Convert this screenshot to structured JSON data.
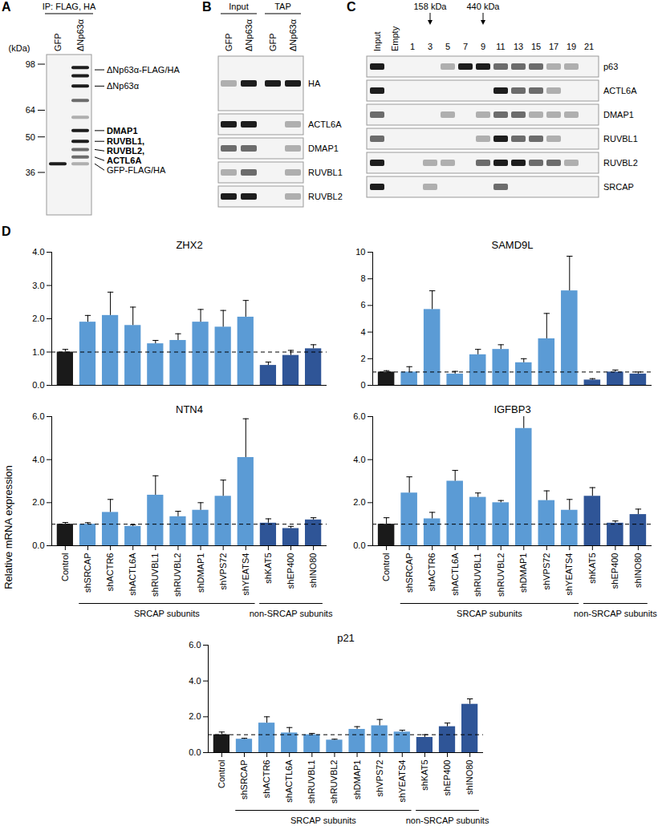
{
  "panels": {
    "A": {
      "label": "A",
      "header": "IP: FLAG, HA",
      "lanes": [
        "GFP",
        "ΔNp63α"
      ],
      "marker_title": "(kDa)",
      "markers": [
        98,
        64,
        50,
        36
      ],
      "bands": [
        {
          "kda": 95,
          "signal": [
            0,
            3
          ]
        },
        {
          "kda": 88,
          "signal": [
            0,
            3
          ]
        },
        {
          "kda": 80,
          "signal": [
            0,
            3
          ]
        },
        {
          "kda": 70,
          "signal": [
            0,
            2
          ]
        },
        {
          "kda": 60,
          "signal": [
            0,
            1
          ]
        },
        {
          "kda": 53,
          "signal": [
            0,
            3
          ]
        },
        {
          "kda": 48,
          "signal": [
            0,
            3
          ]
        },
        {
          "kda": 44.5,
          "signal": [
            0,
            2
          ]
        },
        {
          "kda": 41.5,
          "signal": [
            0,
            2
          ]
        },
        {
          "kda": 39,
          "signal": [
            3,
            1
          ]
        }
      ],
      "labels": [
        {
          "text": "ΔNp63α-FLAG/HA",
          "kda": 93
        },
        {
          "text": "ΔNp63α",
          "kda": 80
        },
        {
          "text": "GFP-FLAG/HA",
          "kda": 39
        }
      ],
      "identified_labels": [
        {
          "text": "DMAP1",
          "kda": 53
        },
        {
          "text": "RUVBL1,",
          "kda": 48
        },
        {
          "text": "RUVBL2,",
          "kda": 44.5
        },
        {
          "text": "ACTL6A",
          "kda": 41.5
        }
      ]
    },
    "B": {
      "label": "B",
      "groups": [
        {
          "text": "Input",
          "lanes": [
            0,
            1
          ]
        },
        {
          "text": "TAP",
          "lanes": [
            2,
            3
          ]
        }
      ],
      "lanes": [
        "GFP",
        "ΔNp63α",
        "GFP",
        "ΔNp63α"
      ],
      "rows": [
        {
          "name": "HA",
          "signal": [
            1,
            3,
            3,
            3
          ]
        },
        {
          "name": "ACTL6A",
          "signal": [
            3,
            3,
            0,
            1
          ]
        },
        {
          "name": "DMAP1",
          "signal": [
            2,
            2,
            0,
            1
          ]
        },
        {
          "name": "RUVBL1",
          "signal": [
            1,
            2,
            0,
            1
          ]
        },
        {
          "name": "RUVBL2",
          "signal": [
            3,
            3,
            0,
            1
          ]
        }
      ]
    },
    "C": {
      "label": "C",
      "lanes": [
        "Input",
        "Empty",
        1,
        3,
        5,
        7,
        9,
        11,
        13,
        15,
        17,
        19,
        21
      ],
      "size_markers": [
        {
          "text": "158 kDa",
          "fraction": 3
        },
        {
          "text": "440 kDa",
          "fraction": 9
        }
      ],
      "rows": [
        {
          "name": "p63",
          "signal": [
            3,
            0,
            0,
            0,
            1,
            3,
            3,
            2,
            2,
            2,
            1,
            1,
            0
          ]
        },
        {
          "name": "ACTL6A",
          "signal": [
            3,
            0,
            0,
            0,
            0,
            0,
            0,
            3,
            2,
            2,
            1,
            0,
            0
          ]
        },
        {
          "name": "DMAP1",
          "signal": [
            2,
            0,
            0,
            0,
            1,
            0,
            1,
            2,
            2,
            1,
            1,
            1,
            0
          ]
        },
        {
          "name": "RUVBL1",
          "signal": [
            2,
            0,
            0,
            0,
            0,
            0,
            1,
            3,
            2,
            2,
            1,
            0,
            0
          ]
        },
        {
          "name": "RUVBL2",
          "signal": [
            3,
            0,
            0,
            1,
            1,
            0,
            2,
            3,
            3,
            2,
            2,
            1,
            0
          ]
        },
        {
          "name": "SRCAP",
          "signal": [
            3,
            0,
            0,
            1,
            0,
            0,
            0,
            2,
            0,
            0,
            0,
            0,
            0
          ]
        }
      ]
    }
  },
  "panel_d": {
    "label": "D",
    "y_label": "Relative mRNA expression",
    "groups": [
      {
        "text": "SRCAP subunits",
        "from": "shSRCAP",
        "to": "shYEATS4"
      },
      {
        "text": "non-SRCAP subunits",
        "from": "shKAT5",
        "to": "shINO80"
      }
    ]
  },
  "chart_data": [
    {
      "type": "bar",
      "title": "ZHX2",
      "categories": [
        "Control",
        "shSRCAP",
        "shACTR6",
        "shACTL6A",
        "shRUVBL1",
        "shRUVBL2",
        "shDMAP1",
        "shVPS72",
        "shYEATS4",
        "shKAT5",
        "shEP400",
        "shINO80"
      ],
      "values": [
        1.0,
        1.9,
        2.1,
        1.8,
        1.25,
        1.35,
        1.9,
        1.75,
        2.05,
        0.6,
        0.9,
        1.1
      ],
      "errors": [
        0.08,
        0.2,
        0.7,
        0.55,
        0.1,
        0.2,
        0.38,
        0.5,
        0.5,
        0.1,
        0.15,
        0.12
      ],
      "colors": [
        "#1a1a1a",
        "#5b9bd5",
        "#5b9bd5",
        "#5b9bd5",
        "#5b9bd5",
        "#5b9bd5",
        "#5b9bd5",
        "#5b9bd5",
        "#5b9bd5",
        "#2f5597",
        "#2f5597",
        "#2f5597"
      ],
      "ylim": [
        0,
        4
      ],
      "yticks": [
        0,
        1,
        2,
        3,
        4
      ],
      "baseline": 1,
      "tick_labels": "y"
    },
    {
      "type": "bar",
      "title": "SAMD9L",
      "categories": [
        "Control",
        "shSRCAP",
        "shACTR6",
        "shACTL6A",
        "shRUVBL1",
        "shRUVBL2",
        "shDMAP1",
        "shVPS72",
        "shYEATS4",
        "shKAT5",
        "shEP400",
        "shINO80"
      ],
      "values": [
        1.0,
        1.0,
        5.7,
        0.85,
        2.3,
        2.7,
        1.7,
        3.5,
        7.1,
        0.4,
        1.0,
        0.85
      ],
      "errors": [
        0.1,
        0.4,
        1.4,
        0.2,
        0.4,
        0.35,
        0.3,
        1.9,
        2.6,
        0.1,
        0.15,
        0.15
      ],
      "colors": [
        "#1a1a1a",
        "#5b9bd5",
        "#5b9bd5",
        "#5b9bd5",
        "#5b9bd5",
        "#5b9bd5",
        "#5b9bd5",
        "#5b9bd5",
        "#5b9bd5",
        "#2f5597",
        "#2f5597",
        "#2f5597"
      ],
      "ylim": [
        0,
        10
      ],
      "yticks": [
        0,
        2,
        4,
        6,
        8,
        10
      ],
      "baseline": 1,
      "tick_labels": "y"
    },
    {
      "type": "bar",
      "title": "NTN4",
      "categories": [
        "Control",
        "shSRCAP",
        "shACTR6",
        "shACTL6A",
        "shRUVBL1",
        "shRUVBL2",
        "shDMAP1",
        "shVPS72",
        "shYEATS4",
        "shKAT5",
        "shEP400",
        "shINO80"
      ],
      "values": [
        1.0,
        1.0,
        1.55,
        0.9,
        2.35,
        1.35,
        1.65,
        2.3,
        4.1,
        1.05,
        0.8,
        1.2
      ],
      "errors": [
        0.08,
        0.07,
        0.6,
        0.07,
        0.9,
        0.25,
        0.35,
        0.75,
        1.8,
        0.2,
        0.1,
        0.1
      ],
      "colors": [
        "#1a1a1a",
        "#5b9bd5",
        "#5b9bd5",
        "#5b9bd5",
        "#5b9bd5",
        "#5b9bd5",
        "#5b9bd5",
        "#5b9bd5",
        "#5b9bd5",
        "#2f5597",
        "#2f5597",
        "#2f5597"
      ],
      "ylim": [
        0,
        6
      ],
      "yticks": [
        0,
        2,
        4,
        6
      ],
      "baseline": 1
    },
    {
      "type": "bar",
      "title": "IGFBP3",
      "categories": [
        "Control",
        "shSRCAP",
        "shACTR6",
        "shACTL6A",
        "shRUVBL1",
        "shRUVBL2",
        "shDMAP1",
        "shVPS72",
        "shYEATS4",
        "shKAT5",
        "shEP400",
        "shINO80"
      ],
      "values": [
        1.0,
        2.45,
        1.25,
        3.0,
        2.25,
        2.0,
        5.45,
        2.1,
        1.65,
        2.3,
        1.05,
        1.45
      ],
      "errors": [
        0.3,
        0.75,
        0.3,
        0.5,
        0.2,
        0.1,
        0.7,
        0.45,
        0.5,
        0.4,
        0.1,
        0.25
      ],
      "colors": [
        "#1a1a1a",
        "#5b9bd5",
        "#5b9bd5",
        "#5b9bd5",
        "#5b9bd5",
        "#5b9bd5",
        "#5b9bd5",
        "#5b9bd5",
        "#5b9bd5",
        "#2f5597",
        "#2f5597",
        "#2f5597"
      ],
      "ylim": [
        0,
        6
      ],
      "yticks": [
        0,
        2,
        4,
        6
      ],
      "baseline": 1
    },
    {
      "type": "bar",
      "title": "p21",
      "categories": [
        "Control",
        "shSRCAP",
        "shACTR6",
        "shACTL6A",
        "shRUVBL1",
        "shRUVBL2",
        "shDMAP1",
        "shVPS72",
        "shYEATS4",
        "shKAT5",
        "shEP400",
        "shINO80"
      ],
      "values": [
        1.0,
        0.75,
        1.65,
        1.1,
        1.0,
        0.7,
        1.3,
        1.5,
        1.15,
        0.85,
        1.45,
        2.7
      ],
      "errors": [
        0.15,
        0.05,
        0.35,
        0.3,
        0.07,
        0.05,
        0.15,
        0.35,
        0.1,
        0.15,
        0.2,
        0.3
      ],
      "colors": [
        "#1a1a1a",
        "#5b9bd5",
        "#5b9bd5",
        "#5b9bd5",
        "#5b9bd5",
        "#5b9bd5",
        "#5b9bd5",
        "#5b9bd5",
        "#5b9bd5",
        "#2f5597",
        "#2f5597",
        "#2f5597"
      ],
      "ylim": [
        0,
        6
      ],
      "yticks": [
        0,
        2,
        4,
        6
      ],
      "baseline": 1
    }
  ]
}
